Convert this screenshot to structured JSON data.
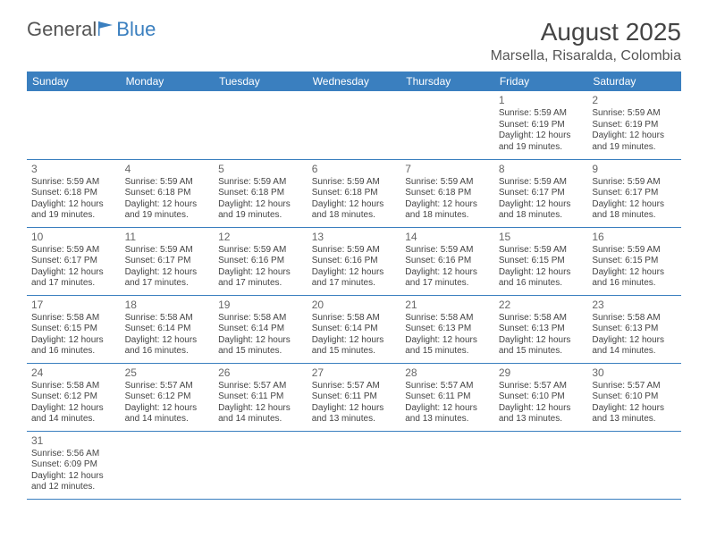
{
  "logo": {
    "text1": "General",
    "text2": "Blue"
  },
  "month": "August 2025",
  "location": "Marsella, Risaralda, Colombia",
  "colors": {
    "header_bg": "#3a7fbf",
    "header_fg": "#ffffff",
    "text": "#444444",
    "rule": "#3a7fbf"
  },
  "weekdays": [
    "Sunday",
    "Monday",
    "Tuesday",
    "Wednesday",
    "Thursday",
    "Friday",
    "Saturday"
  ],
  "weeks": [
    [
      null,
      null,
      null,
      null,
      null,
      {
        "n": "1",
        "sr": "Sunrise: 5:59 AM",
        "ss": "Sunset: 6:19 PM",
        "d1": "Daylight: 12 hours",
        "d2": "and 19 minutes."
      },
      {
        "n": "2",
        "sr": "Sunrise: 5:59 AM",
        "ss": "Sunset: 6:19 PM",
        "d1": "Daylight: 12 hours",
        "d2": "and 19 minutes."
      }
    ],
    [
      {
        "n": "3",
        "sr": "Sunrise: 5:59 AM",
        "ss": "Sunset: 6:18 PM",
        "d1": "Daylight: 12 hours",
        "d2": "and 19 minutes."
      },
      {
        "n": "4",
        "sr": "Sunrise: 5:59 AM",
        "ss": "Sunset: 6:18 PM",
        "d1": "Daylight: 12 hours",
        "d2": "and 19 minutes."
      },
      {
        "n": "5",
        "sr": "Sunrise: 5:59 AM",
        "ss": "Sunset: 6:18 PM",
        "d1": "Daylight: 12 hours",
        "d2": "and 19 minutes."
      },
      {
        "n": "6",
        "sr": "Sunrise: 5:59 AM",
        "ss": "Sunset: 6:18 PM",
        "d1": "Daylight: 12 hours",
        "d2": "and 18 minutes."
      },
      {
        "n": "7",
        "sr": "Sunrise: 5:59 AM",
        "ss": "Sunset: 6:18 PM",
        "d1": "Daylight: 12 hours",
        "d2": "and 18 minutes."
      },
      {
        "n": "8",
        "sr": "Sunrise: 5:59 AM",
        "ss": "Sunset: 6:17 PM",
        "d1": "Daylight: 12 hours",
        "d2": "and 18 minutes."
      },
      {
        "n": "9",
        "sr": "Sunrise: 5:59 AM",
        "ss": "Sunset: 6:17 PM",
        "d1": "Daylight: 12 hours",
        "d2": "and 18 minutes."
      }
    ],
    [
      {
        "n": "10",
        "sr": "Sunrise: 5:59 AM",
        "ss": "Sunset: 6:17 PM",
        "d1": "Daylight: 12 hours",
        "d2": "and 17 minutes."
      },
      {
        "n": "11",
        "sr": "Sunrise: 5:59 AM",
        "ss": "Sunset: 6:17 PM",
        "d1": "Daylight: 12 hours",
        "d2": "and 17 minutes."
      },
      {
        "n": "12",
        "sr": "Sunrise: 5:59 AM",
        "ss": "Sunset: 6:16 PM",
        "d1": "Daylight: 12 hours",
        "d2": "and 17 minutes."
      },
      {
        "n": "13",
        "sr": "Sunrise: 5:59 AM",
        "ss": "Sunset: 6:16 PM",
        "d1": "Daylight: 12 hours",
        "d2": "and 17 minutes."
      },
      {
        "n": "14",
        "sr": "Sunrise: 5:59 AM",
        "ss": "Sunset: 6:16 PM",
        "d1": "Daylight: 12 hours",
        "d2": "and 17 minutes."
      },
      {
        "n": "15",
        "sr": "Sunrise: 5:59 AM",
        "ss": "Sunset: 6:15 PM",
        "d1": "Daylight: 12 hours",
        "d2": "and 16 minutes."
      },
      {
        "n": "16",
        "sr": "Sunrise: 5:59 AM",
        "ss": "Sunset: 6:15 PM",
        "d1": "Daylight: 12 hours",
        "d2": "and 16 minutes."
      }
    ],
    [
      {
        "n": "17",
        "sr": "Sunrise: 5:58 AM",
        "ss": "Sunset: 6:15 PM",
        "d1": "Daylight: 12 hours",
        "d2": "and 16 minutes."
      },
      {
        "n": "18",
        "sr": "Sunrise: 5:58 AM",
        "ss": "Sunset: 6:14 PM",
        "d1": "Daylight: 12 hours",
        "d2": "and 16 minutes."
      },
      {
        "n": "19",
        "sr": "Sunrise: 5:58 AM",
        "ss": "Sunset: 6:14 PM",
        "d1": "Daylight: 12 hours",
        "d2": "and 15 minutes."
      },
      {
        "n": "20",
        "sr": "Sunrise: 5:58 AM",
        "ss": "Sunset: 6:14 PM",
        "d1": "Daylight: 12 hours",
        "d2": "and 15 minutes."
      },
      {
        "n": "21",
        "sr": "Sunrise: 5:58 AM",
        "ss": "Sunset: 6:13 PM",
        "d1": "Daylight: 12 hours",
        "d2": "and 15 minutes."
      },
      {
        "n": "22",
        "sr": "Sunrise: 5:58 AM",
        "ss": "Sunset: 6:13 PM",
        "d1": "Daylight: 12 hours",
        "d2": "and 15 minutes."
      },
      {
        "n": "23",
        "sr": "Sunrise: 5:58 AM",
        "ss": "Sunset: 6:13 PM",
        "d1": "Daylight: 12 hours",
        "d2": "and 14 minutes."
      }
    ],
    [
      {
        "n": "24",
        "sr": "Sunrise: 5:58 AM",
        "ss": "Sunset: 6:12 PM",
        "d1": "Daylight: 12 hours",
        "d2": "and 14 minutes."
      },
      {
        "n": "25",
        "sr": "Sunrise: 5:57 AM",
        "ss": "Sunset: 6:12 PM",
        "d1": "Daylight: 12 hours",
        "d2": "and 14 minutes."
      },
      {
        "n": "26",
        "sr": "Sunrise: 5:57 AM",
        "ss": "Sunset: 6:11 PM",
        "d1": "Daylight: 12 hours",
        "d2": "and 14 minutes."
      },
      {
        "n": "27",
        "sr": "Sunrise: 5:57 AM",
        "ss": "Sunset: 6:11 PM",
        "d1": "Daylight: 12 hours",
        "d2": "and 13 minutes."
      },
      {
        "n": "28",
        "sr": "Sunrise: 5:57 AM",
        "ss": "Sunset: 6:11 PM",
        "d1": "Daylight: 12 hours",
        "d2": "and 13 minutes."
      },
      {
        "n": "29",
        "sr": "Sunrise: 5:57 AM",
        "ss": "Sunset: 6:10 PM",
        "d1": "Daylight: 12 hours",
        "d2": "and 13 minutes."
      },
      {
        "n": "30",
        "sr": "Sunrise: 5:57 AM",
        "ss": "Sunset: 6:10 PM",
        "d1": "Daylight: 12 hours",
        "d2": "and 13 minutes."
      }
    ],
    [
      {
        "n": "31",
        "sr": "Sunrise: 5:56 AM",
        "ss": "Sunset: 6:09 PM",
        "d1": "Daylight: 12 hours",
        "d2": "and 12 minutes."
      },
      null,
      null,
      null,
      null,
      null,
      null
    ]
  ]
}
